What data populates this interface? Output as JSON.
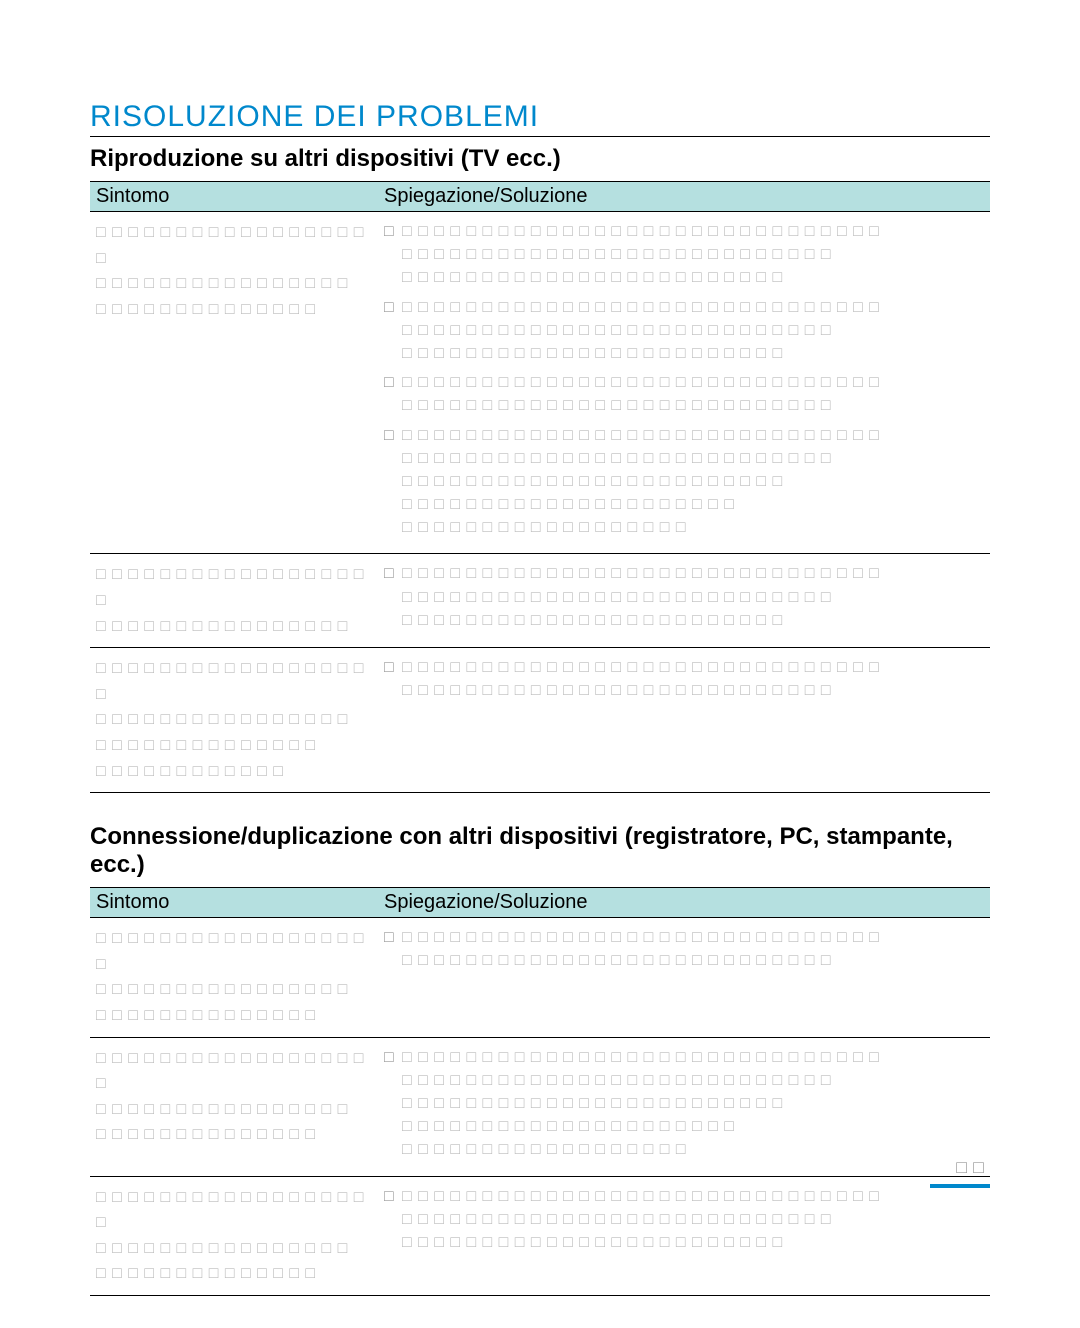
{
  "title": "RISOLUZIONE DEI PROBLEMI",
  "section1": {
    "subtitle": "Riproduzione su altri dispositivi (TV ecc.)",
    "col1": "Sintomo",
    "col2": "Spiegazione/Soluzione",
    "rows": [
      {
        "symptom_lines": 3,
        "explanation_items": [
          3,
          3,
          2,
          5
        ]
      },
      {
        "symptom_lines": 2,
        "explanation_items": [
          3
        ]
      },
      {
        "symptom_lines": 4,
        "explanation_items": [
          2
        ]
      }
    ]
  },
  "section2": {
    "subtitle": "Connessione/duplicazione con altri dispositivi (registratore, PC, stampante, ecc.)",
    "col1": "Sintomo",
    "col2": "Spiegazione/Soluzione",
    "rows": [
      {
        "symptom_lines": 3,
        "explanation_items": [
          2
        ]
      },
      {
        "symptom_lines": 3,
        "explanation_items": [
          5
        ]
      },
      {
        "symptom_lines": 3,
        "explanation_items": [
          3
        ]
      }
    ]
  },
  "page_number": "□□",
  "colors": {
    "title": "#0088cc",
    "header_bg": "#b5e0e0",
    "text": "#000000",
    "placeholder": "#999999"
  }
}
